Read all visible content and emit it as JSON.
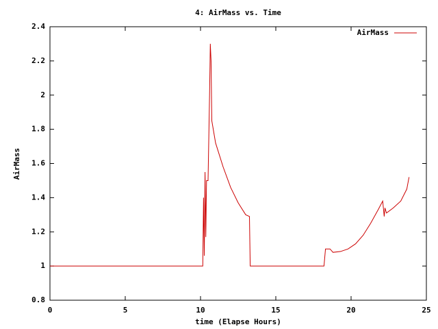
{
  "chart_data": {
    "type": "line",
    "title": "4: AirMass vs. Time",
    "x_label": "time (Elapse Hours)",
    "y_label": "AirMass",
    "series": [
      {
        "name": "AirMass",
        "color": "#cc0000",
        "x": [
          0,
          10.15,
          10.2,
          10.25,
          10.3,
          10.35,
          10.4,
          10.5,
          10.6,
          10.65,
          10.7,
          10.75,
          11,
          11.5,
          12,
          12.5,
          13,
          13.25,
          13.3,
          18.2,
          18.3,
          18.6,
          18.8,
          19.3,
          19.8,
          20.3,
          20.8,
          21.3,
          21.8,
          22.1,
          22.2,
          22.25,
          22.35,
          22.8,
          23.3,
          23.7,
          23.85
        ],
        "values": [
          1,
          1,
          1.4,
          1.06,
          1.55,
          1.17,
          1.5,
          1.5,
          2.0,
          2.3,
          2.2,
          1.85,
          1.72,
          1.58,
          1.46,
          1.37,
          1.3,
          1.29,
          1.0,
          1.0,
          1.1,
          1.1,
          1.08,
          1.085,
          1.1,
          1.13,
          1.18,
          1.25,
          1.33,
          1.38,
          1.29,
          1.34,
          1.31,
          1.34,
          1.38,
          1.45,
          1.52
        ]
      }
    ],
    "xlim": [
      0,
      25
    ],
    "xticks": [
      0,
      5,
      10,
      15,
      20,
      25
    ],
    "ylim": [
      0.8,
      2.4
    ],
    "yticks": [
      0.8,
      1,
      1.2,
      1.4,
      1.6,
      1.8,
      2,
      2.2,
      2.4
    ],
    "legend": "top-right"
  }
}
